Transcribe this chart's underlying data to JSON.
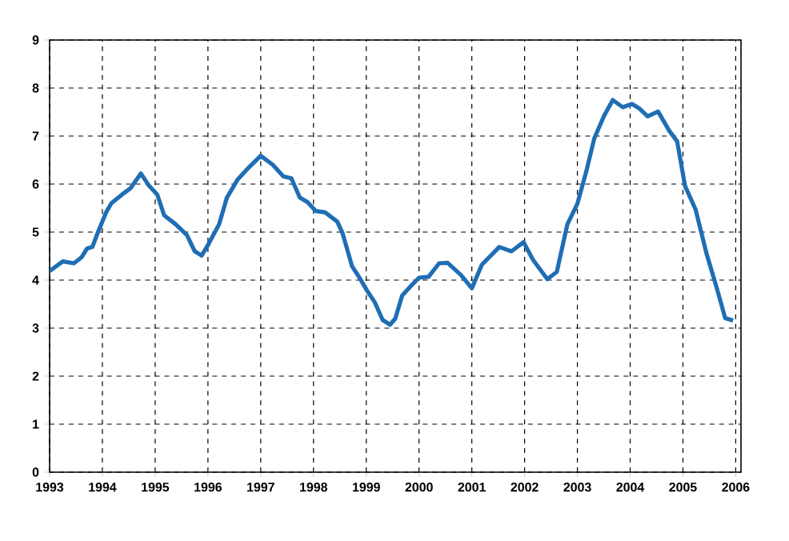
{
  "chart_data": {
    "type": "line",
    "x": [
      1993.0,
      1993.25,
      1993.46,
      1993.61,
      1993.71,
      1993.81,
      1993.92,
      1994.07,
      1994.17,
      1994.37,
      1994.53,
      1994.73,
      1994.88,
      1995.04,
      1995.17,
      1995.39,
      1995.6,
      1995.75,
      1995.88,
      1996.0,
      1996.21,
      1996.36,
      1996.56,
      1996.77,
      1997.0,
      1997.23,
      1997.43,
      1997.58,
      1997.74,
      1997.89,
      1998.04,
      1998.22,
      1998.45,
      1998.55,
      1998.73,
      1998.86,
      1999.01,
      1999.16,
      1999.31,
      1999.45,
      1999.55,
      1999.68,
      1999.83,
      2000.0,
      2000.18,
      2000.38,
      2000.54,
      2000.79,
      2001.0,
      2001.19,
      2001.52,
      2001.75,
      2001.98,
      2002.16,
      2002.43,
      2002.61,
      2002.81,
      2003.0,
      2003.17,
      2003.32,
      2003.5,
      2003.67,
      2003.86,
      2004.03,
      2004.18,
      2004.33,
      2004.53,
      2004.74,
      2004.89,
      2005.04,
      2005.24,
      2005.45,
      2005.65,
      2005.8,
      2005.95
    ],
    "series": [
      {
        "color": "#1f6eb4",
        "values": [
          4.19,
          4.39,
          4.35,
          4.48,
          4.66,
          4.69,
          5.01,
          5.41,
          5.6,
          5.78,
          5.91,
          6.22,
          5.97,
          5.78,
          5.35,
          5.16,
          4.94,
          4.6,
          4.51,
          4.73,
          5.16,
          5.72,
          6.09,
          6.34,
          6.59,
          6.4,
          6.16,
          6.12,
          5.72,
          5.62,
          5.44,
          5.41,
          5.22,
          4.98,
          4.29,
          4.07,
          3.79,
          3.54,
          3.17,
          3.07,
          3.2,
          3.68,
          3.86,
          4.05,
          4.07,
          4.35,
          4.36,
          4.11,
          3.83,
          4.32,
          4.69,
          4.6,
          4.79,
          4.42,
          4.02,
          4.17,
          5.16,
          5.59,
          6.27,
          6.95,
          7.41,
          7.75,
          7.6,
          7.67,
          7.57,
          7.41,
          7.51,
          7.11,
          6.89,
          5.96,
          5.47,
          4.54,
          3.8,
          3.21,
          3.16
        ]
      }
    ],
    "xlim": [
      1993,
      2006.1
    ],
    "ylim": [
      0,
      9
    ],
    "xticks": [
      1993,
      1994,
      1995,
      1996,
      1997,
      1998,
      1999,
      2000,
      2001,
      2002,
      2003,
      2004,
      2005,
      2006
    ],
    "yticks": [
      0,
      1,
      2,
      3,
      4,
      5,
      6,
      7,
      8,
      9
    ],
    "grid": true,
    "marker": "none",
    "line_style": "solid"
  }
}
